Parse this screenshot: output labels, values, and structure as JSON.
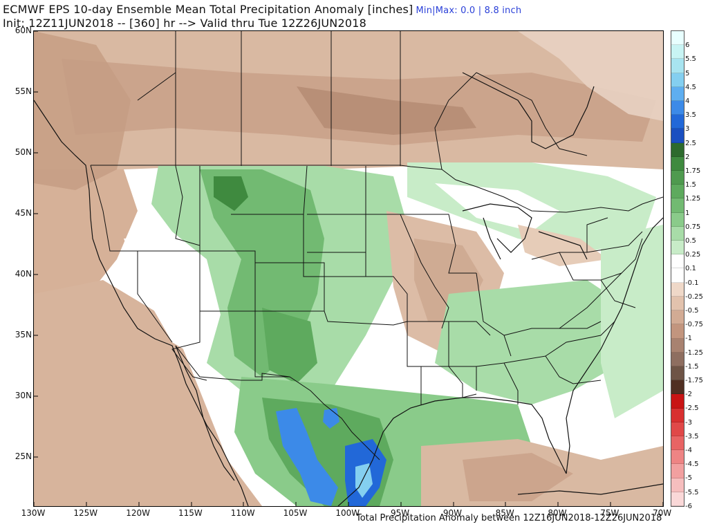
{
  "header": {
    "title": "ECMWF EPS 10-day Ensemble Mean Total Precipitation Anomaly [inches]",
    "minmax": "Min|Max: 0.0 | 8.8 inch",
    "subtitle": "Init: 12Z11JUN2018 -- [360] hr --> Valid thru Tue 12Z26JUN2018"
  },
  "footer": {
    "note": "Total Precipitation Anomaly between 12Z16JUN2018-12Z26JUN2018"
  },
  "axes": {
    "lat_labels": [
      "60N",
      "55N",
      "50N",
      "45N",
      "40N",
      "35N",
      "30N",
      "25N"
    ],
    "lon_labels": [
      "130W",
      "125W",
      "120W",
      "115W",
      "110W",
      "105W",
      "100W",
      "95W",
      "90W",
      "85W",
      "80W",
      "75W",
      "70W"
    ]
  },
  "colorbar": {
    "labels": [
      "6",
      "5.5",
      "5",
      "4.5",
      "4",
      "3.5",
      "3",
      "2.5",
      "2",
      "1.75",
      "1.5",
      "1.25",
      "1",
      "0.75",
      "0.5",
      "0.25",
      "0.1",
      "-0.1",
      "-0.25",
      "-0.5",
      "-0.75",
      "-1",
      "-1.25",
      "-1.5",
      "-1.75",
      "-2",
      "-2.5",
      "-3",
      "-3.5",
      "-4",
      "-4.5",
      "-5",
      "-5.5",
      "-6"
    ],
    "colors": [
      "#e8ffff",
      "#c8f4f4",
      "#a8e4f0",
      "#84cff0",
      "#5eaef0",
      "#3c8ae8",
      "#2268d8",
      "#1a4fc0",
      "#2d6a2d",
      "#3f8a3f",
      "#4f9a4f",
      "#5eaa5e",
      "#72ba72",
      "#8acb8a",
      "#a8dca8",
      "#c8ecc8",
      "#ffffff",
      "#ffffff",
      "#efd8c8",
      "#e2c2ad",
      "#d2ab94",
      "#c2957e",
      "#a88270",
      "#8e6e60",
      "#6e5446",
      "#502f22",
      "#c81414",
      "#d83030",
      "#e04848",
      "#e86464",
      "#ee8484",
      "#f2a0a0",
      "#f6bebe",
      "#fad8d8"
    ]
  }
}
